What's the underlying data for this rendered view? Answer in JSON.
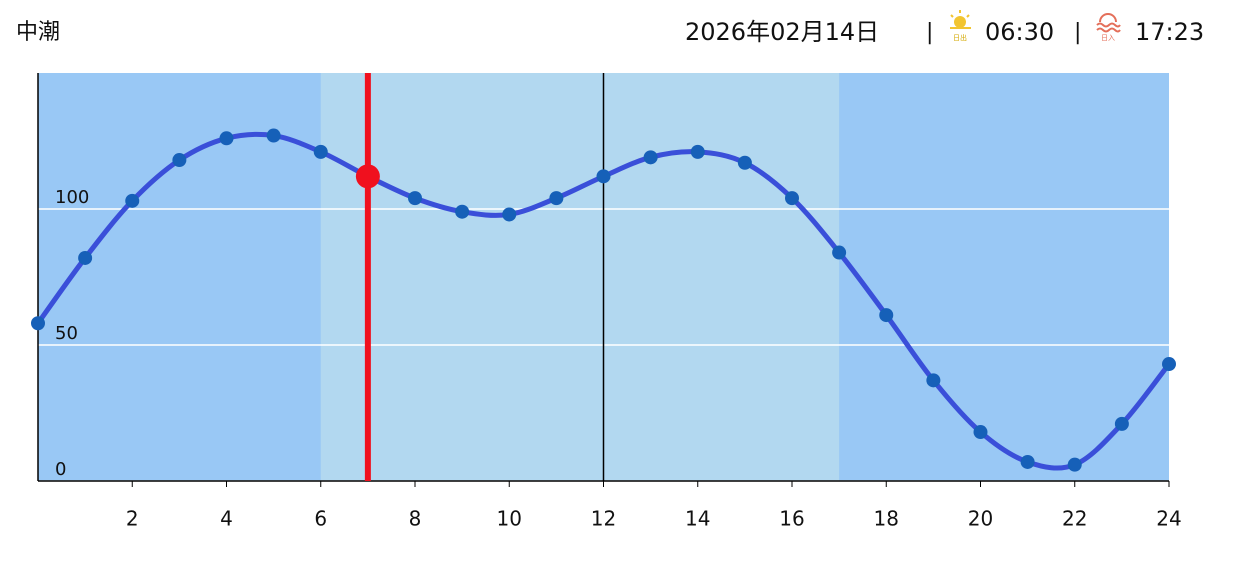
{
  "header": {
    "date": "2026年02月14日",
    "separator": "|",
    "sunrise_label": "日出",
    "sunrise": "06:30",
    "sunset_label": "日入",
    "sunset": "17:23"
  },
  "chart_data": {
    "type": "line",
    "title": "中潮",
    "x": [
      0,
      1,
      2,
      3,
      4,
      5,
      6,
      7,
      8,
      9,
      10,
      11,
      12,
      13,
      14,
      15,
      16,
      17,
      18,
      19,
      20,
      21,
      22,
      23,
      24
    ],
    "series": [
      {
        "color": "#3a4fd9",
        "marker_color": "#1660b8",
        "values": [
          58,
          82,
          103,
          118,
          126,
          127,
          121,
          112,
          104,
          99,
          98,
          104,
          112,
          119,
          121,
          117,
          104,
          84,
          61,
          37,
          18,
          7,
          6,
          21,
          43
        ]
      }
    ],
    "xlim": [
      0,
      24
    ],
    "xticks": [
      2,
      4,
      6,
      8,
      10,
      12,
      14,
      16,
      18,
      20,
      22,
      24
    ],
    "ylim": [
      0,
      150
    ],
    "yticks": [
      0,
      50,
      100
    ],
    "grid": true,
    "daylight_range": [
      6,
      17
    ],
    "night_color": "#99c8f5",
    "day_color": "#b2d8f0",
    "now": 7,
    "now_color": "#f0101e",
    "noon_line": 12
  }
}
